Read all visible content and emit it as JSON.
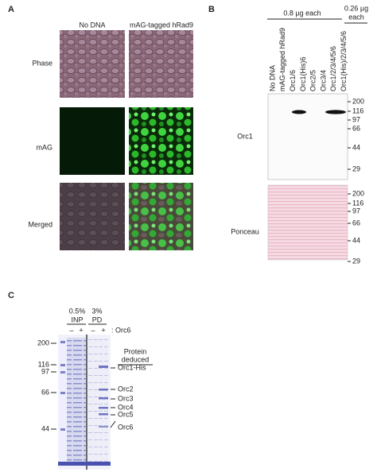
{
  "panel_a": {
    "label": "A",
    "columns": [
      "No DNA",
      "mAG-tagged hRad9"
    ],
    "rows": [
      "Phase",
      "mAG",
      "Merged"
    ]
  },
  "panel_b": {
    "label": "B",
    "groups": [
      "0.8 µg each",
      "0.26 µg",
      "each"
    ],
    "lanes": [
      "No DNA",
      "mAG-tagged hRad9",
      "Orc1/6",
      "Orc1(His)6",
      "Orc2/5",
      "Orc3/4",
      "Orc1/2/3/4/5/6",
      "Orc1(His)/2/3/4/5/6"
    ],
    "blots": [
      {
        "label": "Orc1",
        "markers": [
          "200",
          "116",
          "97",
          "66",
          "44",
          "29"
        ]
      },
      {
        "label": "Ponceau",
        "markers": [
          "200",
          "116",
          "97",
          "66",
          "44",
          "29"
        ]
      }
    ]
  },
  "panel_c": {
    "label": "C",
    "samples": [
      [
        "0.5%",
        "INP"
      ],
      [
        "3%",
        "PD"
      ]
    ],
    "signs": [
      "–",
      "+",
      "–",
      "+"
    ],
    "sign_label": ": Orc6",
    "markers": [
      "200",
      "116",
      "97",
      "66",
      "44"
    ],
    "header": [
      "Protein",
      "deduced"
    ],
    "proteins": [
      "Orc1-His",
      "Orc2",
      "Orc3",
      "Orc4",
      "Orc5",
      "Orc6"
    ]
  }
}
